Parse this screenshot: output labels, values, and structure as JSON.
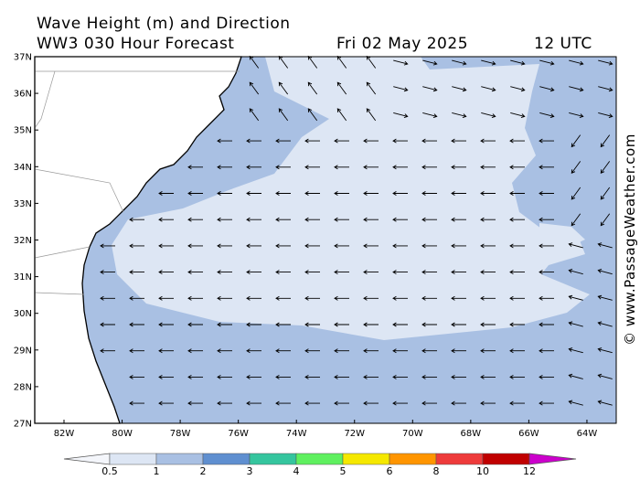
{
  "header": {
    "title": "Wave Height (m) and Direction",
    "forecast": "WW3 030 Hour Forecast",
    "date": "Fri 02 May 2025",
    "time": "12 UTC"
  },
  "map": {
    "lat_labels": [
      "37N",
      "36N",
      "35N",
      "34N",
      "33N",
      "32N",
      "31N",
      "30N",
      "29N",
      "28N",
      "27N"
    ],
    "lon_labels": [
      "82W",
      "80W",
      "78W",
      "76W",
      "74W",
      "72W",
      "70W",
      "68W",
      "66W",
      "64W"
    ]
  },
  "colorbar": {
    "labels": [
      "0.5",
      "1",
      "2",
      "3",
      "4",
      "5",
      "6",
      "8",
      "10",
      "12"
    ]
  },
  "watermark": "© www.PassageWeather.com"
}
